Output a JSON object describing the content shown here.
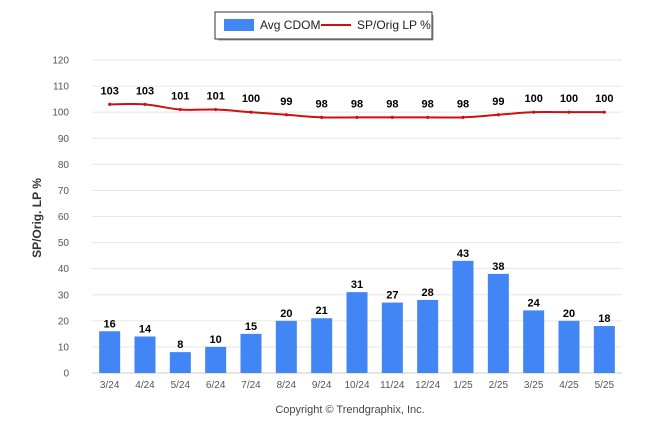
{
  "chart_data": {
    "type": "bar",
    "categories": [
      "3/24",
      "4/24",
      "5/24",
      "6/24",
      "7/24",
      "8/24",
      "9/24",
      "10/24",
      "11/24",
      "12/24",
      "1/25",
      "2/25",
      "3/25",
      "4/25",
      "5/25"
    ],
    "series": [
      {
        "name": "Avg CDOM",
        "type": "bar",
        "values": [
          16,
          14,
          8,
          10,
          15,
          20,
          21,
          31,
          27,
          28,
          43,
          38,
          24,
          20,
          18
        ],
        "color": "#4285f4"
      },
      {
        "name": "SP/Orig LP %",
        "type": "line",
        "values": [
          103,
          103,
          101,
          101,
          100,
          99,
          98,
          98,
          98,
          98,
          98,
          99,
          100,
          100,
          100
        ],
        "color": "#cc1111"
      }
    ],
    "ylabel": "SP/Orig. LP %",
    "ylim": [
      0,
      120
    ],
    "yticks": [
      0,
      10,
      20,
      30,
      40,
      50,
      60,
      70,
      80,
      90,
      100,
      110,
      120
    ],
    "grid": true,
    "legend_position": "top-center"
  },
  "credit": "Copyright © Trendgraphix, Inc."
}
